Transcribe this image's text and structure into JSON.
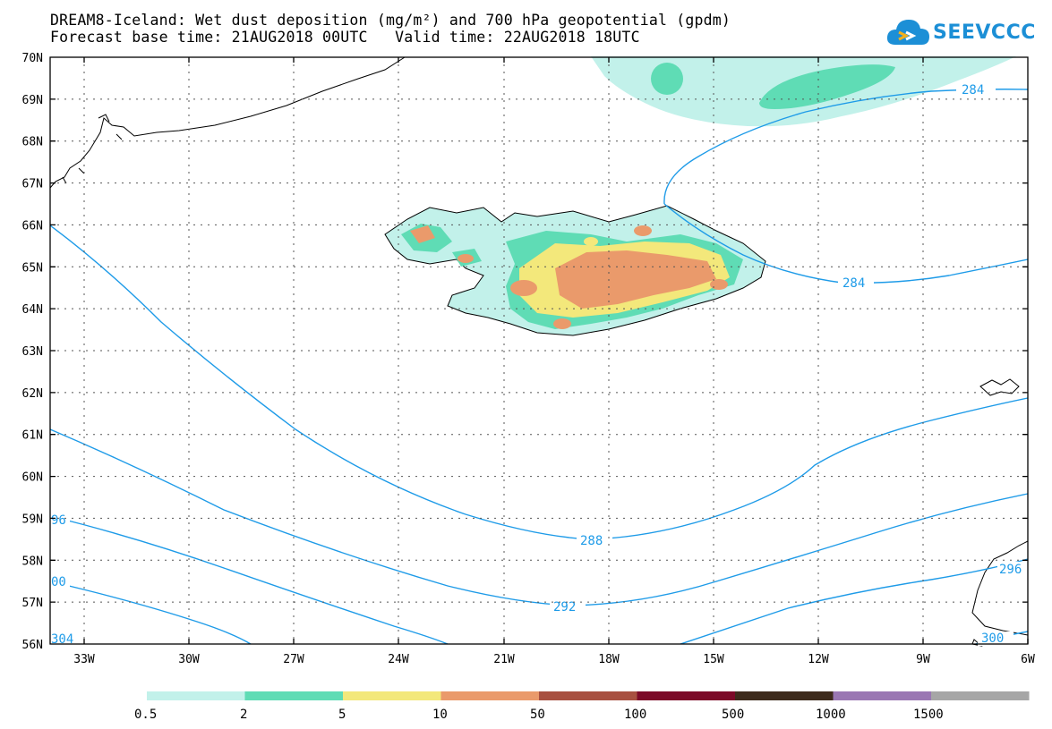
{
  "title": {
    "line1": "DREAM8-Iceland: Wet dust deposition (mg/m²) and 700 hPa geopotential (gpdm)",
    "line2": "Forecast base time: 21AUG2018 00UTC   Valid time: 22AUG2018 18UTC"
  },
  "brand": {
    "name": "SEEVCCC",
    "icon": "cloud-chevron-logo"
  },
  "map": {
    "lat_labels": [
      "70N",
      "69N",
      "68N",
      "67N",
      "66N",
      "65N",
      "64N",
      "63N",
      "62N",
      "61N",
      "60N",
      "59N",
      "58N",
      "57N",
      "56N"
    ],
    "lon_labels": [
      "33W",
      "30W",
      "27W",
      "24W",
      "21W",
      "18W",
      "15W",
      "12W",
      "9W",
      "6W"
    ],
    "contours": [
      {
        "level": "284",
        "labels": [
          "284",
          "284"
        ]
      },
      {
        "level": "288",
        "labels": [
          "288"
        ]
      },
      {
        "level": "292",
        "labels": [
          "292"
        ]
      },
      {
        "level": "296",
        "labels": [
          "96",
          "296"
        ]
      },
      {
        "level": "300",
        "labels": [
          "00",
          "300"
        ]
      },
      {
        "level": "304",
        "labels": [
          "304"
        ]
      }
    ],
    "contour_color": "#1e9be8"
  },
  "legend": {
    "labels": [
      "0.5",
      "2",
      "5",
      "10",
      "50",
      "100",
      "500",
      "1000",
      "1500"
    ],
    "colors": [
      "#c2f1ea",
      "#5fdcb5",
      "#f3e87b",
      "#ea9a6b",
      "#a85040",
      "#7c0a28",
      "#3e2b1c",
      "#9a77b3",
      "#a6a6a6"
    ]
  }
}
